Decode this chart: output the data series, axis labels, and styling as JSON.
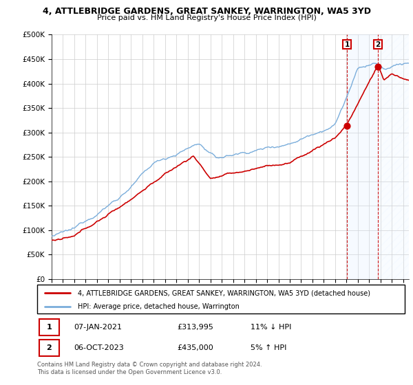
{
  "title": "4, ATTLEBRIDGE GARDENS, GREAT SANKEY, WARRINGTON, WA5 3YD",
  "subtitle": "Price paid vs. HM Land Registry's House Price Index (HPI)",
  "ylabel_ticks": [
    "£0",
    "£50K",
    "£100K",
    "£150K",
    "£200K",
    "£250K",
    "£300K",
    "£350K",
    "£400K",
    "£450K",
    "£500K"
  ],
  "ylim": [
    0,
    500000
  ],
  "xlim_start": 1995.0,
  "xlim_end": 2026.5,
  "hpi_color": "#7aaddb",
  "price_color": "#cc0000",
  "shade_color": "#ddeeff",
  "sale1_x": 2021.04,
  "sale1_y": 313995,
  "sale2_x": 2023.77,
  "sale2_y": 435000,
  "legend_line1": "4, ATTLEBRIDGE GARDENS, GREAT SANKEY, WARRINGTON, WA5 3YD (detached house)",
  "legend_line2": "HPI: Average price, detached house, Warrington",
  "note1_label": "1",
  "note1_date": "07-JAN-2021",
  "note1_price": "£313,995",
  "note1_hpi": "11% ↓ HPI",
  "note2_label": "2",
  "note2_date": "06-OCT-2023",
  "note2_price": "£435,000",
  "note2_hpi": "5% ↑ HPI",
  "footer": "Contains HM Land Registry data © Crown copyright and database right 2024.\nThis data is licensed under the Open Government Licence v3.0.",
  "background_color": "#ffffff",
  "grid_color": "#cccccc"
}
